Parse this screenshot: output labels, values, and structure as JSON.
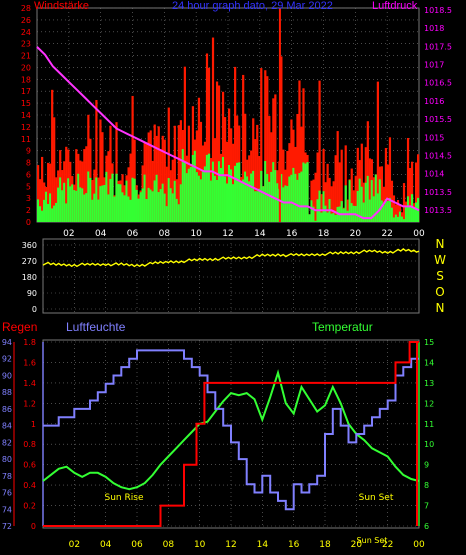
{
  "chart_data": [
    {
      "type": "bar",
      "title": "24 hour graph dato, 29 Mar 2022",
      "left_axis_label": "Windstärke",
      "right_axis_label": "Luftdruck",
      "x_ticks": [
        "02",
        "04",
        "06",
        "08",
        "10",
        "12",
        "14",
        "16",
        "18",
        "20",
        "22",
        "00"
      ],
      "y_left_ticks": [
        "0",
        "2",
        "3",
        "5",
        "6",
        "8",
        "9",
        "11",
        "12",
        "14",
        "15",
        "17",
        "18",
        "20",
        "21",
        "23",
        "24",
        "26",
        "28"
      ],
      "y_right_ticks": [
        "1013.5",
        "1013.5",
        "1014",
        "1014.5",
        "1015",
        "1015.5",
        "1016",
        "1016.5",
        "1017",
        "1017.5",
        "1018",
        "1018.5"
      ],
      "y_left_range": [
        0,
        28
      ],
      "y_right_range": [
        1013.0,
        1018.5
      ],
      "colors": {
        "gust": "#ff1a00",
        "wind": "#33ff33",
        "pressure": "#ff33ff",
        "left_axis": "#ff0000",
        "right_axis": "#ff00ff"
      },
      "pressure": {
        "x": [
          0.0,
          0.5,
          1.0,
          1.5,
          2.0,
          2.5,
          3.0,
          3.5,
          4.0,
          4.5,
          5.0,
          5.5,
          6.0,
          6.5,
          7.0,
          7.5,
          8.0,
          8.5,
          9.0,
          9.5,
          10.0,
          10.5,
          11.0,
          11.5,
          12.0,
          12.5,
          13.0,
          13.5,
          14.0,
          14.5,
          15.0,
          15.5,
          16.0,
          16.5,
          17.0,
          17.5,
          18.0,
          18.5,
          19.0,
          19.5,
          20.0,
          20.5,
          21.0,
          21.5,
          22.0,
          22.5,
          23.0,
          23.5,
          24.0
        ],
        "y": [
          1017.5,
          1017.3,
          1017.0,
          1016.8,
          1016.6,
          1016.4,
          1016.2,
          1016.0,
          1015.8,
          1015.6,
          1015.4,
          1015.3,
          1015.2,
          1015.1,
          1015.0,
          1014.9,
          1014.8,
          1014.7,
          1014.6,
          1014.5,
          1014.4,
          1014.3,
          1014.3,
          1014.2,
          1014.2,
          1014.1,
          1014.0,
          1013.9,
          1013.8,
          1013.7,
          1013.6,
          1013.5,
          1013.5,
          1013.4,
          1013.4,
          1013.3,
          1013.3,
          1013.3,
          1013.2,
          1013.2,
          1013.2,
          1013.1,
          1013.1,
          1013.3,
          1013.6,
          1013.5,
          1013.4,
          1013.4,
          1013.3
        ]
      },
      "wind_seed": 7,
      "gust_max": 28
    },
    {
      "type": "line",
      "y_ticks": [
        "360",
        "270",
        "180",
        "90",
        "0"
      ],
      "y_range": [
        0,
        360
      ],
      "compass_labels": [
        "N",
        "W",
        "S",
        "O",
        "N"
      ],
      "color": "#ffff00",
      "direction": {
        "x": [
          0,
          1,
          2,
          3,
          4,
          5,
          6,
          7,
          8,
          9,
          10,
          11,
          12,
          13,
          14,
          15,
          16,
          17,
          18,
          19,
          20,
          21,
          22,
          23,
          24
        ],
        "y": [
          255,
          250,
          248,
          250,
          252,
          250,
          245,
          255,
          265,
          270,
          278,
          282,
          285,
          290,
          300,
          305,
          302,
          305,
          310,
          315,
          320,
          325,
          320,
          330,
          325
        ]
      }
    },
    {
      "type": "line",
      "left_axis_label": "Regen",
      "middle_axis_label": "Luftfeuchte",
      "right_axis_label": "Temperatur",
      "rain_ticks": [
        "0",
        "0.2",
        "0.4",
        "0.6",
        "0.8",
        "1",
        "1.2",
        "1.4",
        "1.6",
        "1.8"
      ],
      "humidity_ticks": [
        "72",
        "74",
        "76",
        "78",
        "80",
        "82",
        "84",
        "86",
        "88",
        "90",
        "92",
        "94"
      ],
      "temp_ticks": [
        "6",
        "7",
        "8",
        "9",
        "10",
        "11",
        "12",
        "13",
        "14",
        "15"
      ],
      "x_ticks": [
        "02",
        "04",
        "06",
        "08",
        "10",
        "12",
        "14",
        "16",
        "18",
        "20",
        "22",
        "00"
      ],
      "annotations": [
        "Sun Rise",
        "Sun Set",
        "Sun Set"
      ],
      "colors": {
        "rain": "#ff0000",
        "humidity": "#8080ff",
        "temperature": "#33ff33",
        "rain_axis": "#ff0000",
        "humidity_axis": "#8080ff",
        "temp_axis": "#33ff33"
      },
      "rain": {
        "x": [
          0,
          7.5,
          7.5,
          9.0,
          9.0,
          9.8,
          9.8,
          10.3,
          10.3,
          22.5,
          22.5,
          23.4,
          23.4,
          24.0
        ],
        "y": [
          0,
          0,
          0.2,
          0.2,
          0.6,
          0.6,
          1.0,
          1.0,
          1.4,
          1.4,
          1.6,
          1.6,
          1.8,
          1.8
        ]
      },
      "humidity": {
        "x": [
          0.0,
          0.5,
          1.0,
          2.0,
          3.0,
          3.5,
          4.0,
          4.5,
          5.0,
          5.5,
          6.0,
          6.5,
          7.0,
          7.5,
          8.0,
          8.5,
          9.0,
          9.5,
          10.0,
          10.5,
          11.0,
          11.5,
          12.0,
          12.5,
          13.0,
          13.5,
          14.0,
          14.5,
          15.0,
          15.5,
          16.0,
          16.5,
          17.0,
          17.5,
          18.0,
          18.5,
          19.0,
          19.5,
          20.0,
          20.5,
          21.0,
          21.5,
          22.0,
          22.5,
          23.0,
          23.5,
          24.0
        ],
        "y": [
          84,
          84,
          85,
          86,
          87,
          88,
          89,
          90,
          91,
          92,
          93,
          93,
          93,
          93,
          93,
          93,
          92,
          91,
          90,
          88,
          86,
          84,
          82,
          80,
          77,
          76,
          78,
          76,
          75,
          74,
          77,
          76,
          77,
          78,
          83,
          86,
          84,
          82,
          83,
          84,
          85,
          86,
          87,
          90,
          91,
          92,
          92
        ]
      },
      "temperature": {
        "x": [
          0.0,
          0.5,
          1.0,
          1.5,
          2.0,
          2.5,
          3.0,
          3.5,
          4.0,
          4.5,
          5.0,
          5.5,
          6.0,
          6.5,
          7.0,
          7.5,
          8.0,
          8.5,
          9.0,
          9.5,
          10.0,
          10.5,
          11.0,
          11.5,
          12.0,
          12.5,
          13.0,
          13.5,
          14.0,
          14.5,
          15.0,
          15.5,
          16.0,
          16.5,
          17.0,
          17.5,
          18.0,
          18.5,
          19.0,
          19.5,
          20.0,
          20.5,
          21.0,
          21.5,
          22.0,
          22.5,
          23.0,
          23.5,
          24.0
        ],
        "y": [
          8.2,
          8.5,
          8.8,
          8.9,
          8.6,
          8.4,
          8.6,
          8.6,
          8.4,
          8.1,
          7.9,
          7.8,
          7.9,
          8.1,
          8.5,
          9.0,
          9.4,
          9.8,
          10.2,
          10.6,
          11.0,
          11.1,
          11.6,
          12.1,
          12.5,
          12.4,
          12.5,
          12.2,
          11.2,
          12.3,
          13.5,
          12.0,
          11.5,
          12.8,
          12.2,
          11.6,
          11.9,
          12.8,
          12.0,
          11.0,
          10.5,
          10.2,
          9.8,
          9.6,
          9.4,
          8.9,
          8.5,
          8.3,
          8.2
        ]
      }
    }
  ]
}
